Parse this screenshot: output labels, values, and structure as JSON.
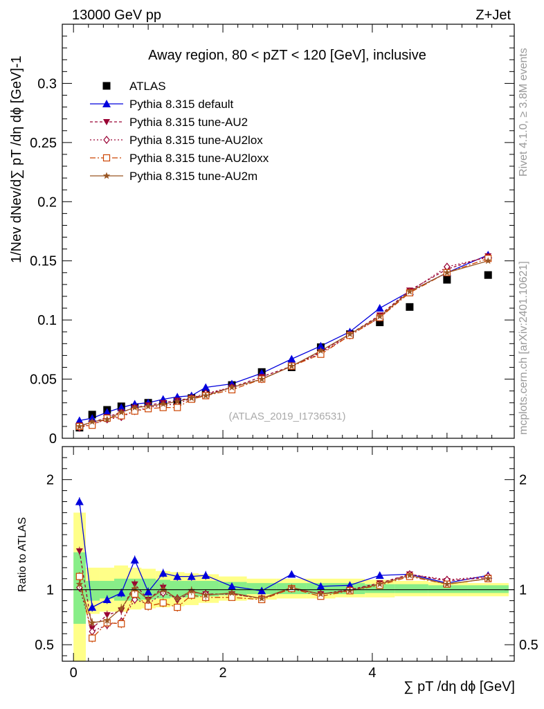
{
  "header": {
    "energy_label": "13000 GeV pp",
    "process_label": "Z+Jet",
    "side_label_top": "Rivet 4.1.0, ≥ 3.8M events",
    "side_label_bottom": "mcplots.cern.ch [arXiv:2401.10621]"
  },
  "chart_data": {
    "type": "scatter",
    "title": "Away region, 80 < pZT < 120 [GeV], inclusive",
    "watermark": "(ATLAS_2019_I1736531)",
    "xlabel": "∑ pT /dη dϕ [GeV]",
    "ylabel": "1/Nev dNev/d∑ pT /dη dϕ [GeV]-1",
    "ratio_ylabel": "Ratio to ATLAS",
    "xlim": [
      -0.15,
      5.9
    ],
    "ylim": [
      0,
      0.35
    ],
    "ratio_ylim": [
      0.35,
      2.3
    ],
    "x_ticks": [
      0,
      2,
      4
    ],
    "y_ticks": [
      0,
      0.05,
      0.1,
      0.15,
      0.2,
      0.25,
      0.3
    ],
    "y_tick_labels": [
      "0",
      "0.05",
      "0.1",
      "0.15",
      "0.2",
      "0.25",
      "0.3"
    ],
    "ratio_ticks": [
      0.5,
      1,
      2
    ],
    "ratio_tick_labels": [
      "0.5",
      "1",
      "2"
    ],
    "x": [
      0.08,
      0.25,
      0.45,
      0.64,
      0.82,
      1.0,
      1.2,
      1.39,
      1.58,
      1.77,
      2.12,
      2.52,
      2.92,
      3.31,
      3.7,
      4.1,
      4.5,
      5.0,
      5.55
    ],
    "series": [
      {
        "name": "ATLAS",
        "color": "#000000",
        "marker": "square",
        "values": [
          0.009,
          0.02,
          0.024,
          0.027,
          0.026,
          0.03,
          0.029,
          0.031,
          0.034,
          0.038,
          0.045,
          0.056,
          0.06,
          0.077,
          0.088,
          0.098,
          0.111,
          0.134,
          0.138
        ]
      },
      {
        "name": "Pythia 8.315 default",
        "color": "#0000dd",
        "marker": "triangle-up",
        "values": [
          0.015,
          0.017,
          0.022,
          0.026,
          0.029,
          0.03,
          0.033,
          0.035,
          0.036,
          0.043,
          0.046,
          0.055,
          0.067,
          0.078,
          0.09,
          0.11,
          0.124,
          0.14,
          0.155
        ],
        "ratio": [
          1.8,
          0.84,
          0.91,
          0.97,
          1.27,
          0.98,
          1.15,
          1.12,
          1.12,
          1.13,
          1.03,
          0.99,
          1.14,
          1.03,
          1.04,
          1.13,
          1.14,
          1.06,
          1.13
        ]
      },
      {
        "name": "Pythia 8.315 tune-AU2",
        "color": "#990033",
        "marker": "triangle-down",
        "values": [
          0.011,
          0.013,
          0.018,
          0.022,
          0.026,
          0.028,
          0.03,
          0.032,
          0.034,
          0.037,
          0.043,
          0.052,
          0.061,
          0.073,
          0.088,
          0.104,
          0.125,
          0.143,
          0.154
        ],
        "ratio": [
          1.35,
          0.65,
          0.77,
          0.81,
          1.05,
          0.91,
          1.02,
          0.9,
          0.98,
          0.96,
          0.96,
          0.92,
          1.01,
          0.96,
          1.0,
          1.06,
          1.14,
          1.08,
          1.11
        ]
      },
      {
        "name": "Pythia 8.315 tune-AU2lox",
        "color": "#990033",
        "marker": "diamond",
        "values": [
          0.009,
          0.012,
          0.016,
          0.018,
          0.023,
          0.026,
          0.028,
          0.029,
          0.034,
          0.038,
          0.043,
          0.05,
          0.061,
          0.072,
          0.087,
          0.102,
          0.124,
          0.145,
          0.153
        ],
        "ratio": [
          1.02,
          0.62,
          0.68,
          0.71,
          0.91,
          0.87,
          0.97,
          0.92,
          0.98,
          0.96,
          0.96,
          0.92,
          1.01,
          0.96,
          1.0,
          1.05,
          1.14,
          1.09,
          1.12
        ]
      },
      {
        "name": "Pythia 8.315 tune-AU2loxx",
        "color": "#cc4400",
        "marker": "square-open",
        "values": [
          0.01,
          0.011,
          0.017,
          0.019,
          0.023,
          0.025,
          0.026,
          0.026,
          0.033,
          0.036,
          0.041,
          0.05,
          0.061,
          0.071,
          0.087,
          0.102,
          0.123,
          0.14,
          0.152
        ],
        "ratio": [
          1.12,
          0.56,
          0.7,
          0.69,
          0.96,
          0.85,
          0.88,
          0.84,
          0.95,
          0.93,
          0.93,
          0.91,
          1.01,
          0.94,
          0.99,
          1.04,
          1.12,
          1.05,
          1.1
        ]
      },
      {
        "name": "Pythia 8.315 tune-AU2m",
        "color": "#995522",
        "marker": "star",
        "values": [
          0.01,
          0.014,
          0.016,
          0.022,
          0.026,
          0.027,
          0.029,
          0.031,
          0.034,
          0.036,
          0.043,
          0.05,
          0.061,
          0.074,
          0.088,
          0.103,
          0.124,
          0.14,
          0.15
        ],
        "ratio": [
          1.05,
          0.7,
          0.72,
          0.83,
          1.01,
          0.91,
          1.0,
          0.92,
          0.99,
          0.95,
          0.97,
          0.92,
          1.02,
          0.96,
          0.99,
          1.05,
          1.13,
          1.05,
          1.1
        ]
      }
    ],
    "ratio_band_green": [
      0.69,
      0.9,
      0.92,
      0.9,
      0.9,
      0.91,
      0.92,
      0.93,
      0.93,
      0.94,
      0.95,
      0.96,
      0.96,
      0.96,
      0.96,
      0.97,
      0.97,
      0.97,
      0.97
    ],
    "ratio_band_green_hi": [
      1.34,
      1.08,
      1.08,
      1.1,
      1.1,
      1.1,
      1.09,
      1.08,
      1.08,
      1.08,
      1.07,
      1.06,
      1.06,
      1.06,
      1.06,
      1.05,
      1.05,
      1.04,
      1.04
    ],
    "ratio_band_yellow": [
      0.35,
      0.78,
      0.8,
      0.8,
      0.82,
      0.83,
      0.84,
      0.85,
      0.86,
      0.88,
      0.9,
      0.91,
      0.92,
      0.92,
      0.93,
      0.93,
      0.94,
      0.94,
      0.94
    ],
    "ratio_band_yellow_hi": [
      1.7,
      1.2,
      1.2,
      1.22,
      1.2,
      1.19,
      1.17,
      1.16,
      1.15,
      1.14,
      1.12,
      1.1,
      1.1,
      1.1,
      1.1,
      1.09,
      1.08,
      1.07,
      1.06
    ]
  }
}
